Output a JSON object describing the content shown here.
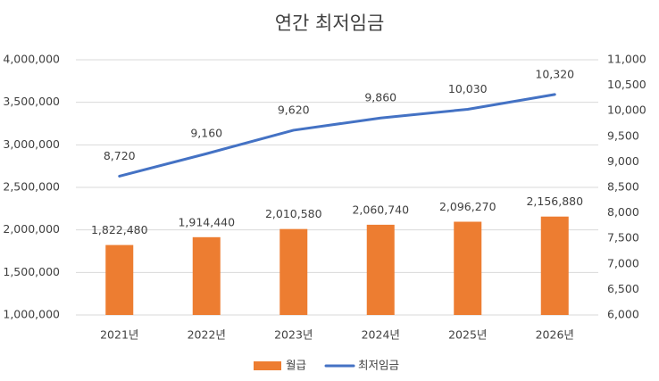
{
  "chart_data": {
    "type": "bar-line",
    "title": "연간 최저임금",
    "categories": [
      "2021년",
      "2022년",
      "2023년",
      "2024년",
      "2025년",
      "2026년"
    ],
    "series": [
      {
        "name": "월급",
        "type": "bar",
        "color": "#ED7D31",
        "values": [
          1822480,
          1914440,
          2010580,
          2060740,
          2096270,
          2156880
        ],
        "value_labels": [
          "1,822,480",
          "1,914,440",
          "2,010,580",
          "2,060,740",
          "2,096,270",
          "2,156,880"
        ]
      },
      {
        "name": "최저임금",
        "type": "line",
        "axis": "y2",
        "color": "#4472C4",
        "values": [
          8720,
          9160,
          9620,
          9860,
          10030,
          10320
        ],
        "value_labels": [
          "8,720",
          "9,160",
          "9,620",
          "9,860",
          "10,030",
          "10,320"
        ]
      }
    ],
    "ylim": [
      1000000,
      4000000
    ],
    "yticks": [
      {
        "value": 1000000,
        "label": "1,000,000"
      },
      {
        "value": 1500000,
        "label": "1,500,000"
      },
      {
        "value": 2000000,
        "label": "2,000,000"
      },
      {
        "value": 2500000,
        "label": "2,500,000"
      },
      {
        "value": 3000000,
        "label": "3,000,000"
      },
      {
        "value": 3500000,
        "label": "3,500,000"
      },
      {
        "value": 4000000,
        "label": "4,000,000"
      }
    ],
    "y2lim": [
      6000,
      11000
    ],
    "y2ticks": [
      {
        "value": 6000,
        "label": "6,000"
      },
      {
        "value": 6500,
        "label": "6,500"
      },
      {
        "value": 7000,
        "label": "7,000"
      },
      {
        "value": 7500,
        "label": "7,500"
      },
      {
        "value": 8000,
        "label": "8,000"
      },
      {
        "value": 8500,
        "label": "8,500"
      },
      {
        "value": 9000,
        "label": "9,000"
      },
      {
        "value": 9500,
        "label": "9,500"
      },
      {
        "value": 10000,
        "label": "10,000"
      },
      {
        "value": 10500,
        "label": "10,500"
      },
      {
        "value": 11000,
        "label": "11,000"
      }
    ],
    "grid": true,
    "legend": "bottom"
  }
}
